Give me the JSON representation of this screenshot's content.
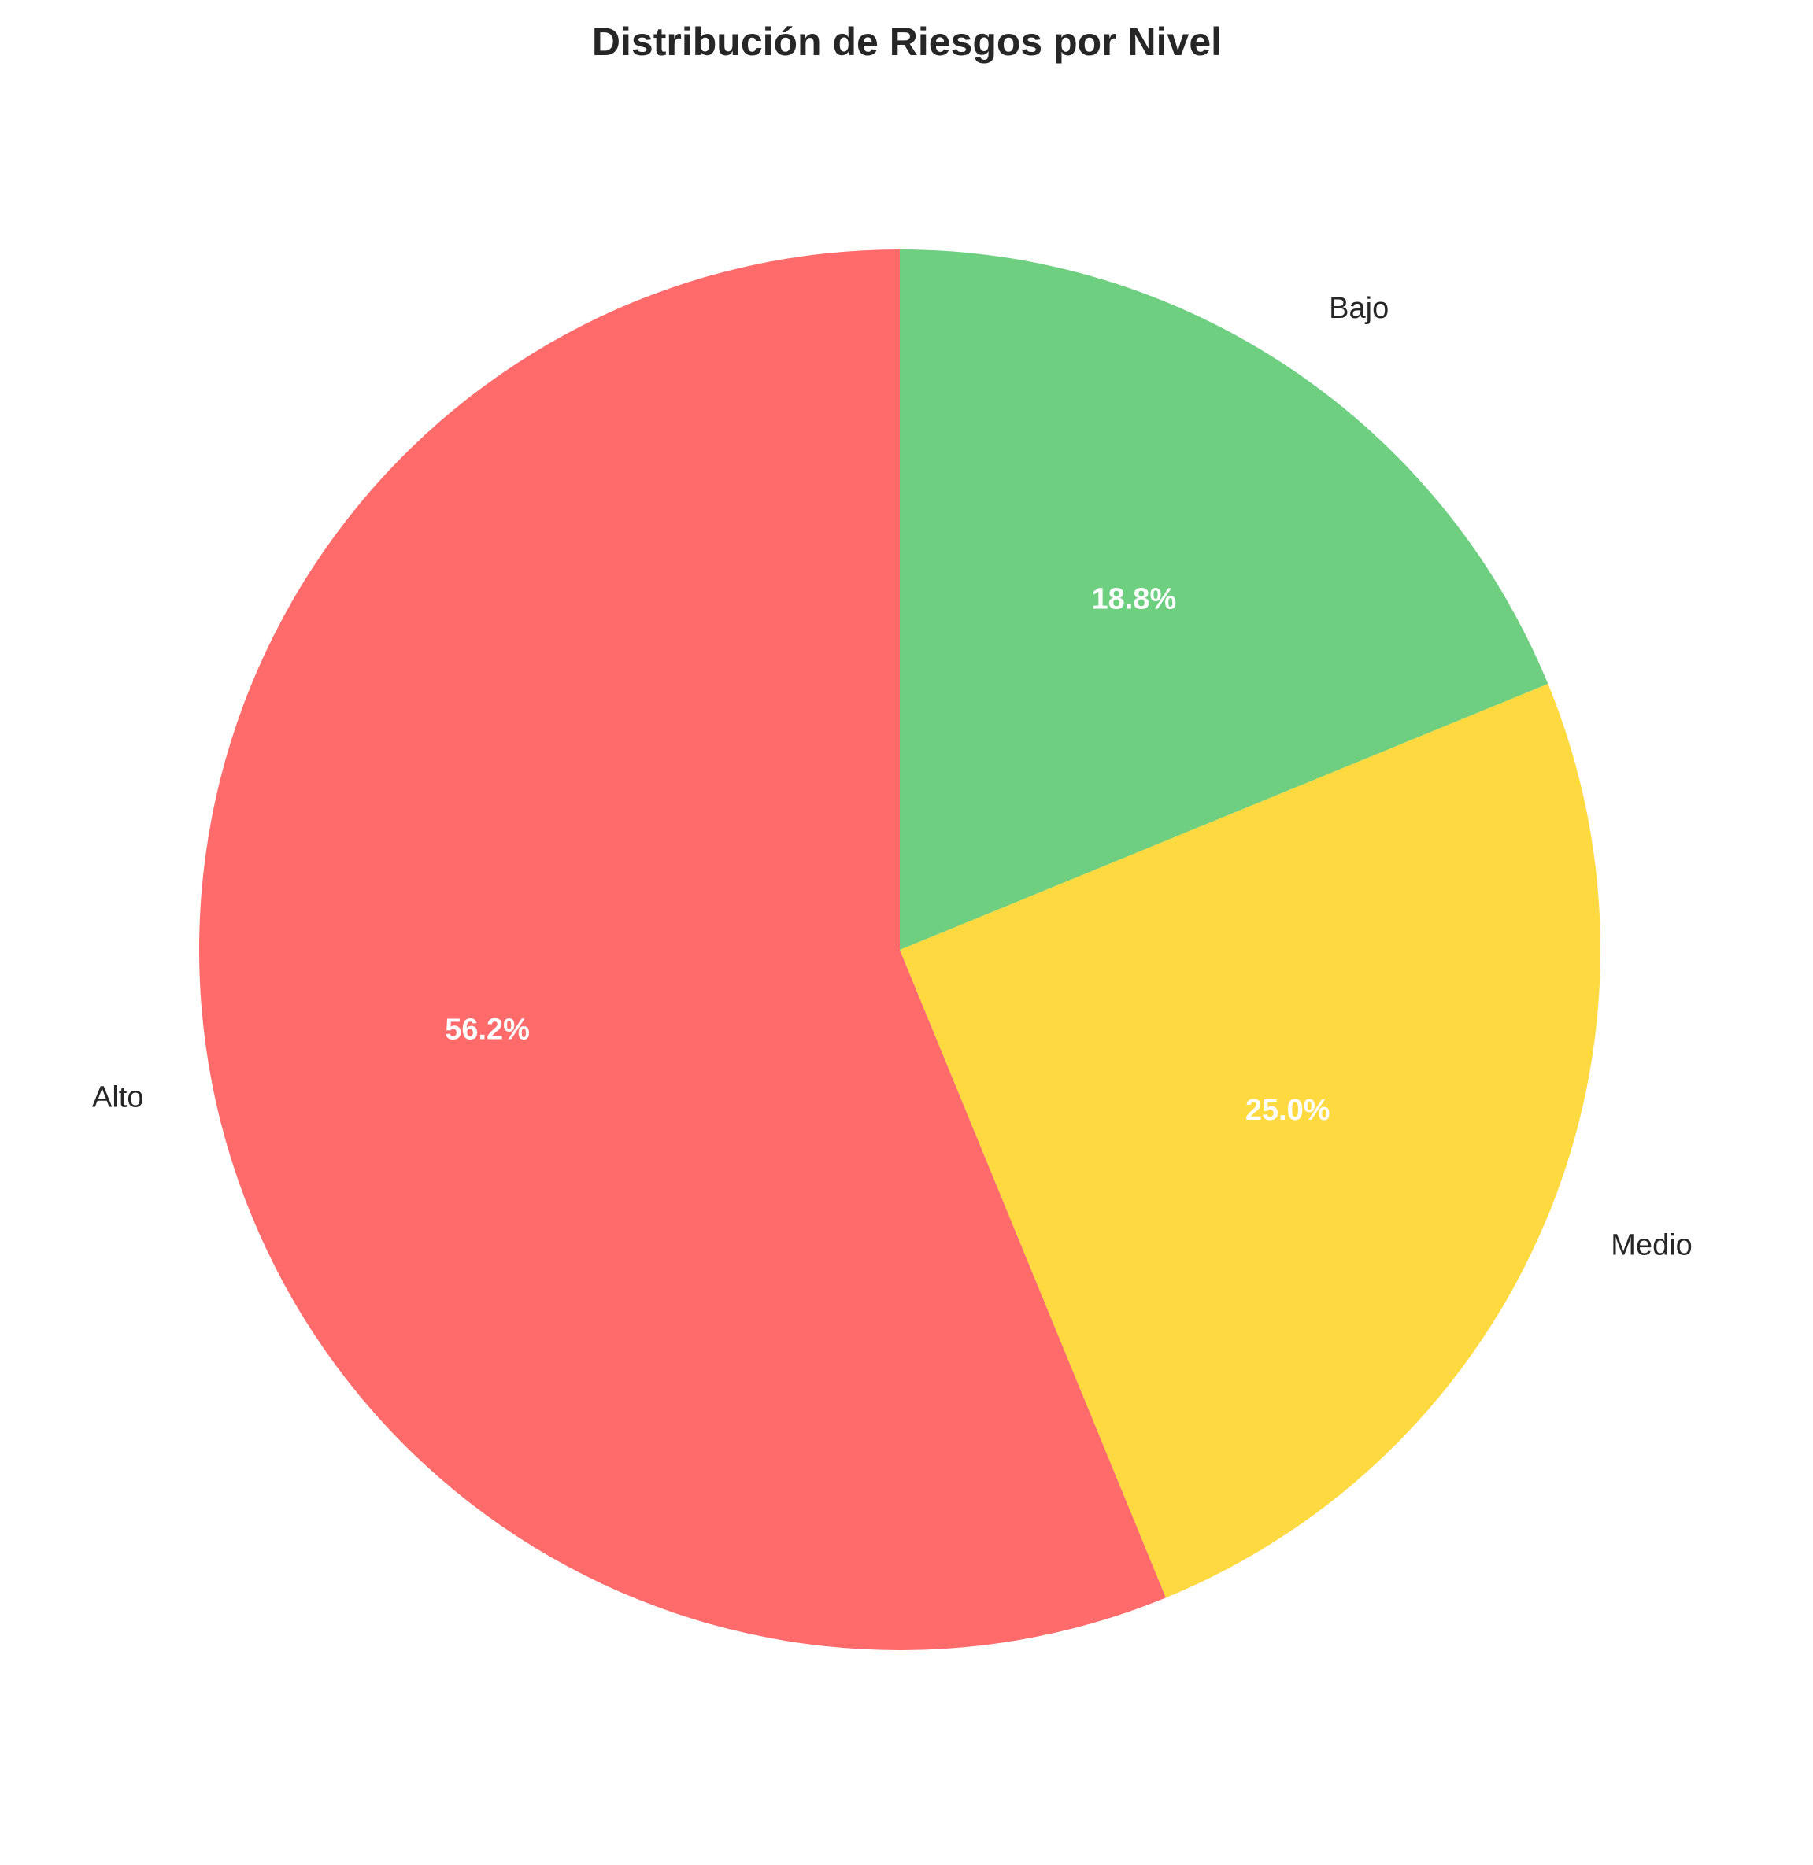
{
  "chart_data": {
    "type": "pie",
    "title": "Distribución de Riesgos por Nivel",
    "labels": [
      "Alto",
      "Medio",
      "Bajo"
    ],
    "values": [
      56.2,
      25.0,
      18.8
    ],
    "percent_labels": [
      "56.2%",
      "25.0%",
      "18.8%"
    ],
    "colors": [
      "#ff6b6b",
      "#fed93f",
      "#6dcf7f"
    ],
    "start_angle_deg": 90,
    "direction": "counterclockwise",
    "legend": "none"
  }
}
